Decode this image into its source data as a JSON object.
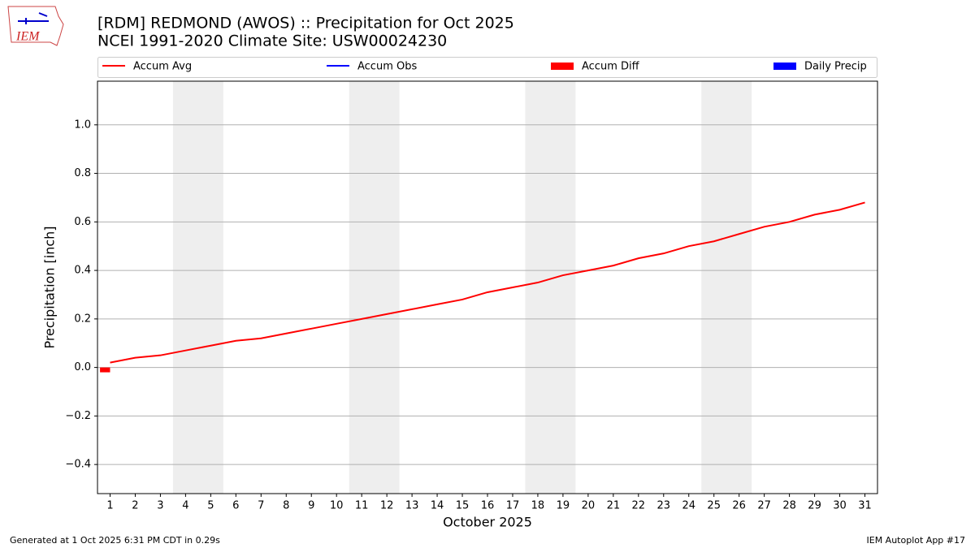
{
  "logo_text": "IEM",
  "footer": {
    "left": "Generated at 1 Oct 2025 6:31 PM CDT in 0.29s",
    "right": "IEM Autoplot App #17"
  },
  "chart_data": {
    "type": "line",
    "title": "[RDM] REDMOND (AWOS) :: Precipitation for Oct 2025",
    "subtitle": "NCEI 1991-2020 Climate Site: USW00024230",
    "ylabel": "Precipitation [inch]",
    "xlabel": "October 2025",
    "x": [
      1,
      2,
      3,
      4,
      5,
      6,
      7,
      8,
      9,
      10,
      11,
      12,
      13,
      14,
      15,
      16,
      17,
      18,
      19,
      20,
      21,
      22,
      23,
      24,
      25,
      26,
      27,
      28,
      29,
      30,
      31
    ],
    "series": [
      {
        "name": "Accum Avg",
        "kind": "line",
        "color": "#ff0000",
        "values": [
          0.02,
          0.04,
          0.05,
          0.07,
          0.09,
          0.11,
          0.12,
          0.14,
          0.16,
          0.18,
          0.2,
          0.22,
          0.24,
          0.26,
          0.28,
          0.31,
          0.33,
          0.35,
          0.38,
          0.4,
          0.42,
          0.45,
          0.47,
          0.5,
          0.52,
          0.55,
          0.58,
          0.6,
          0.63,
          0.65,
          0.68
        ]
      },
      {
        "name": "Accum Obs",
        "kind": "line",
        "color": "#0000ff",
        "values": [
          null,
          null,
          null,
          null,
          null,
          null,
          null,
          null,
          null,
          null,
          null,
          null,
          null,
          null,
          null,
          null,
          null,
          null,
          null,
          null,
          null,
          null,
          null,
          null,
          null,
          null,
          null,
          null,
          null,
          null,
          null
        ]
      },
      {
        "name": "Accum Diff",
        "kind": "bar",
        "color": "#ff0000",
        "values": [
          -0.02,
          null,
          null,
          null,
          null,
          null,
          null,
          null,
          null,
          null,
          null,
          null,
          null,
          null,
          null,
          null,
          null,
          null,
          null,
          null,
          null,
          null,
          null,
          null,
          null,
          null,
          null,
          null,
          null,
          null,
          null
        ]
      },
      {
        "name": "Daily Precip",
        "kind": "bar",
        "color": "#0000ff",
        "values": [
          null,
          null,
          null,
          null,
          null,
          null,
          null,
          null,
          null,
          null,
          null,
          null,
          null,
          null,
          null,
          null,
          null,
          null,
          null,
          null,
          null,
          null,
          null,
          null,
          null,
          null,
          null,
          null,
          null,
          null,
          null
        ]
      }
    ],
    "shaded_x": [
      [
        3.5,
        5.5
      ],
      [
        10.5,
        12.5
      ],
      [
        17.5,
        19.5
      ],
      [
        24.5,
        26.5
      ]
    ],
    "xlim": [
      0.5,
      31.5
    ],
    "xticks": [
      1,
      2,
      3,
      4,
      5,
      6,
      7,
      8,
      9,
      10,
      11,
      12,
      13,
      14,
      15,
      16,
      17,
      18,
      19,
      20,
      21,
      22,
      23,
      24,
      25,
      26,
      27,
      28,
      29,
      30,
      31
    ],
    "ylim": [
      -0.52,
      1.18
    ],
    "yticks": [
      {
        "value": -0.4,
        "label": "−0.4"
      },
      {
        "value": -0.2,
        "label": "−0.2"
      },
      {
        "value": 0,
        "label": "0.0"
      },
      {
        "value": 0.2,
        "label": "0.2"
      },
      {
        "value": 0.4,
        "label": "0.4"
      },
      {
        "value": 0.6,
        "label": "0.6"
      },
      {
        "value": 0.8,
        "label": "0.8"
      },
      {
        "value": 1.0,
        "label": "1.0"
      }
    ],
    "grid": true
  }
}
